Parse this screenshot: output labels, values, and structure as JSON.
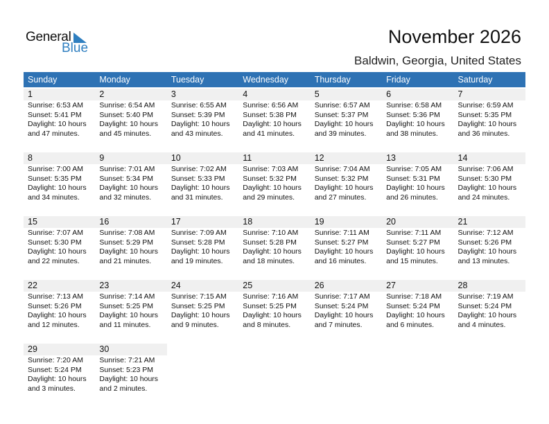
{
  "logo": {
    "general": "General",
    "blue": "Blue"
  },
  "title": "November 2026",
  "subtitle": "Baldwin, Georgia, United States",
  "colors": {
    "header": "#2e72b4",
    "date_bar": "#f0f0f0",
    "logo_blue": "#2f7fc0"
  },
  "weekdays": [
    "Sunday",
    "Monday",
    "Tuesday",
    "Wednesday",
    "Thursday",
    "Friday",
    "Saturday"
  ],
  "weeks": [
    [
      {
        "day": "1",
        "sunrise": "Sunrise: 6:53 AM",
        "sunset": "Sunset: 5:41 PM",
        "daylight": "Daylight: 10 hours",
        "minutes": "and 47 minutes."
      },
      {
        "day": "2",
        "sunrise": "Sunrise: 6:54 AM",
        "sunset": "Sunset: 5:40 PM",
        "daylight": "Daylight: 10 hours",
        "minutes": "and 45 minutes."
      },
      {
        "day": "3",
        "sunrise": "Sunrise: 6:55 AM",
        "sunset": "Sunset: 5:39 PM",
        "daylight": "Daylight: 10 hours",
        "minutes": "and 43 minutes."
      },
      {
        "day": "4",
        "sunrise": "Sunrise: 6:56 AM",
        "sunset": "Sunset: 5:38 PM",
        "daylight": "Daylight: 10 hours",
        "minutes": "and 41 minutes."
      },
      {
        "day": "5",
        "sunrise": "Sunrise: 6:57 AM",
        "sunset": "Sunset: 5:37 PM",
        "daylight": "Daylight: 10 hours",
        "minutes": "and 39 minutes."
      },
      {
        "day": "6",
        "sunrise": "Sunrise: 6:58 AM",
        "sunset": "Sunset: 5:36 PM",
        "daylight": "Daylight: 10 hours",
        "minutes": "and 38 minutes."
      },
      {
        "day": "7",
        "sunrise": "Sunrise: 6:59 AM",
        "sunset": "Sunset: 5:35 PM",
        "daylight": "Daylight: 10 hours",
        "minutes": "and 36 minutes."
      }
    ],
    [
      {
        "day": "8",
        "sunrise": "Sunrise: 7:00 AM",
        "sunset": "Sunset: 5:35 PM",
        "daylight": "Daylight: 10 hours",
        "minutes": "and 34 minutes."
      },
      {
        "day": "9",
        "sunrise": "Sunrise: 7:01 AM",
        "sunset": "Sunset: 5:34 PM",
        "daylight": "Daylight: 10 hours",
        "minutes": "and 32 minutes."
      },
      {
        "day": "10",
        "sunrise": "Sunrise: 7:02 AM",
        "sunset": "Sunset: 5:33 PM",
        "daylight": "Daylight: 10 hours",
        "minutes": "and 31 minutes."
      },
      {
        "day": "11",
        "sunrise": "Sunrise: 7:03 AM",
        "sunset": "Sunset: 5:32 PM",
        "daylight": "Daylight: 10 hours",
        "minutes": "and 29 minutes."
      },
      {
        "day": "12",
        "sunrise": "Sunrise: 7:04 AM",
        "sunset": "Sunset: 5:32 PM",
        "daylight": "Daylight: 10 hours",
        "minutes": "and 27 minutes."
      },
      {
        "day": "13",
        "sunrise": "Sunrise: 7:05 AM",
        "sunset": "Sunset: 5:31 PM",
        "daylight": "Daylight: 10 hours",
        "minutes": "and 26 minutes."
      },
      {
        "day": "14",
        "sunrise": "Sunrise: 7:06 AM",
        "sunset": "Sunset: 5:30 PM",
        "daylight": "Daylight: 10 hours",
        "minutes": "and 24 minutes."
      }
    ],
    [
      {
        "day": "15",
        "sunrise": "Sunrise: 7:07 AM",
        "sunset": "Sunset: 5:30 PM",
        "daylight": "Daylight: 10 hours",
        "minutes": "and 22 minutes."
      },
      {
        "day": "16",
        "sunrise": "Sunrise: 7:08 AM",
        "sunset": "Sunset: 5:29 PM",
        "daylight": "Daylight: 10 hours",
        "minutes": "and 21 minutes."
      },
      {
        "day": "17",
        "sunrise": "Sunrise: 7:09 AM",
        "sunset": "Sunset: 5:28 PM",
        "daylight": "Daylight: 10 hours",
        "minutes": "and 19 minutes."
      },
      {
        "day": "18",
        "sunrise": "Sunrise: 7:10 AM",
        "sunset": "Sunset: 5:28 PM",
        "daylight": "Daylight: 10 hours",
        "minutes": "and 18 minutes."
      },
      {
        "day": "19",
        "sunrise": "Sunrise: 7:11 AM",
        "sunset": "Sunset: 5:27 PM",
        "daylight": "Daylight: 10 hours",
        "minutes": "and 16 minutes."
      },
      {
        "day": "20",
        "sunrise": "Sunrise: 7:11 AM",
        "sunset": "Sunset: 5:27 PM",
        "daylight": "Daylight: 10 hours",
        "minutes": "and 15 minutes."
      },
      {
        "day": "21",
        "sunrise": "Sunrise: 7:12 AM",
        "sunset": "Sunset: 5:26 PM",
        "daylight": "Daylight: 10 hours",
        "minutes": "and 13 minutes."
      }
    ],
    [
      {
        "day": "22",
        "sunrise": "Sunrise: 7:13 AM",
        "sunset": "Sunset: 5:26 PM",
        "daylight": "Daylight: 10 hours",
        "minutes": "and 12 minutes."
      },
      {
        "day": "23",
        "sunrise": "Sunrise: 7:14 AM",
        "sunset": "Sunset: 5:25 PM",
        "daylight": "Daylight: 10 hours",
        "minutes": "and 11 minutes."
      },
      {
        "day": "24",
        "sunrise": "Sunrise: 7:15 AM",
        "sunset": "Sunset: 5:25 PM",
        "daylight": "Daylight: 10 hours",
        "minutes": "and 9 minutes."
      },
      {
        "day": "25",
        "sunrise": "Sunrise: 7:16 AM",
        "sunset": "Sunset: 5:25 PM",
        "daylight": "Daylight: 10 hours",
        "minutes": "and 8 minutes."
      },
      {
        "day": "26",
        "sunrise": "Sunrise: 7:17 AM",
        "sunset": "Sunset: 5:24 PM",
        "daylight": "Daylight: 10 hours",
        "minutes": "and 7 minutes."
      },
      {
        "day": "27",
        "sunrise": "Sunrise: 7:18 AM",
        "sunset": "Sunset: 5:24 PM",
        "daylight": "Daylight: 10 hours",
        "minutes": "and 6 minutes."
      },
      {
        "day": "28",
        "sunrise": "Sunrise: 7:19 AM",
        "sunset": "Sunset: 5:24 PM",
        "daylight": "Daylight: 10 hours",
        "minutes": "and 4 minutes."
      }
    ],
    [
      {
        "day": "29",
        "sunrise": "Sunrise: 7:20 AM",
        "sunset": "Sunset: 5:24 PM",
        "daylight": "Daylight: 10 hours",
        "minutes": "and 3 minutes."
      },
      {
        "day": "30",
        "sunrise": "Sunrise: 7:21 AM",
        "sunset": "Sunset: 5:23 PM",
        "daylight": "Daylight: 10 hours",
        "minutes": "and 2 minutes."
      },
      null,
      null,
      null,
      null,
      null
    ]
  ]
}
